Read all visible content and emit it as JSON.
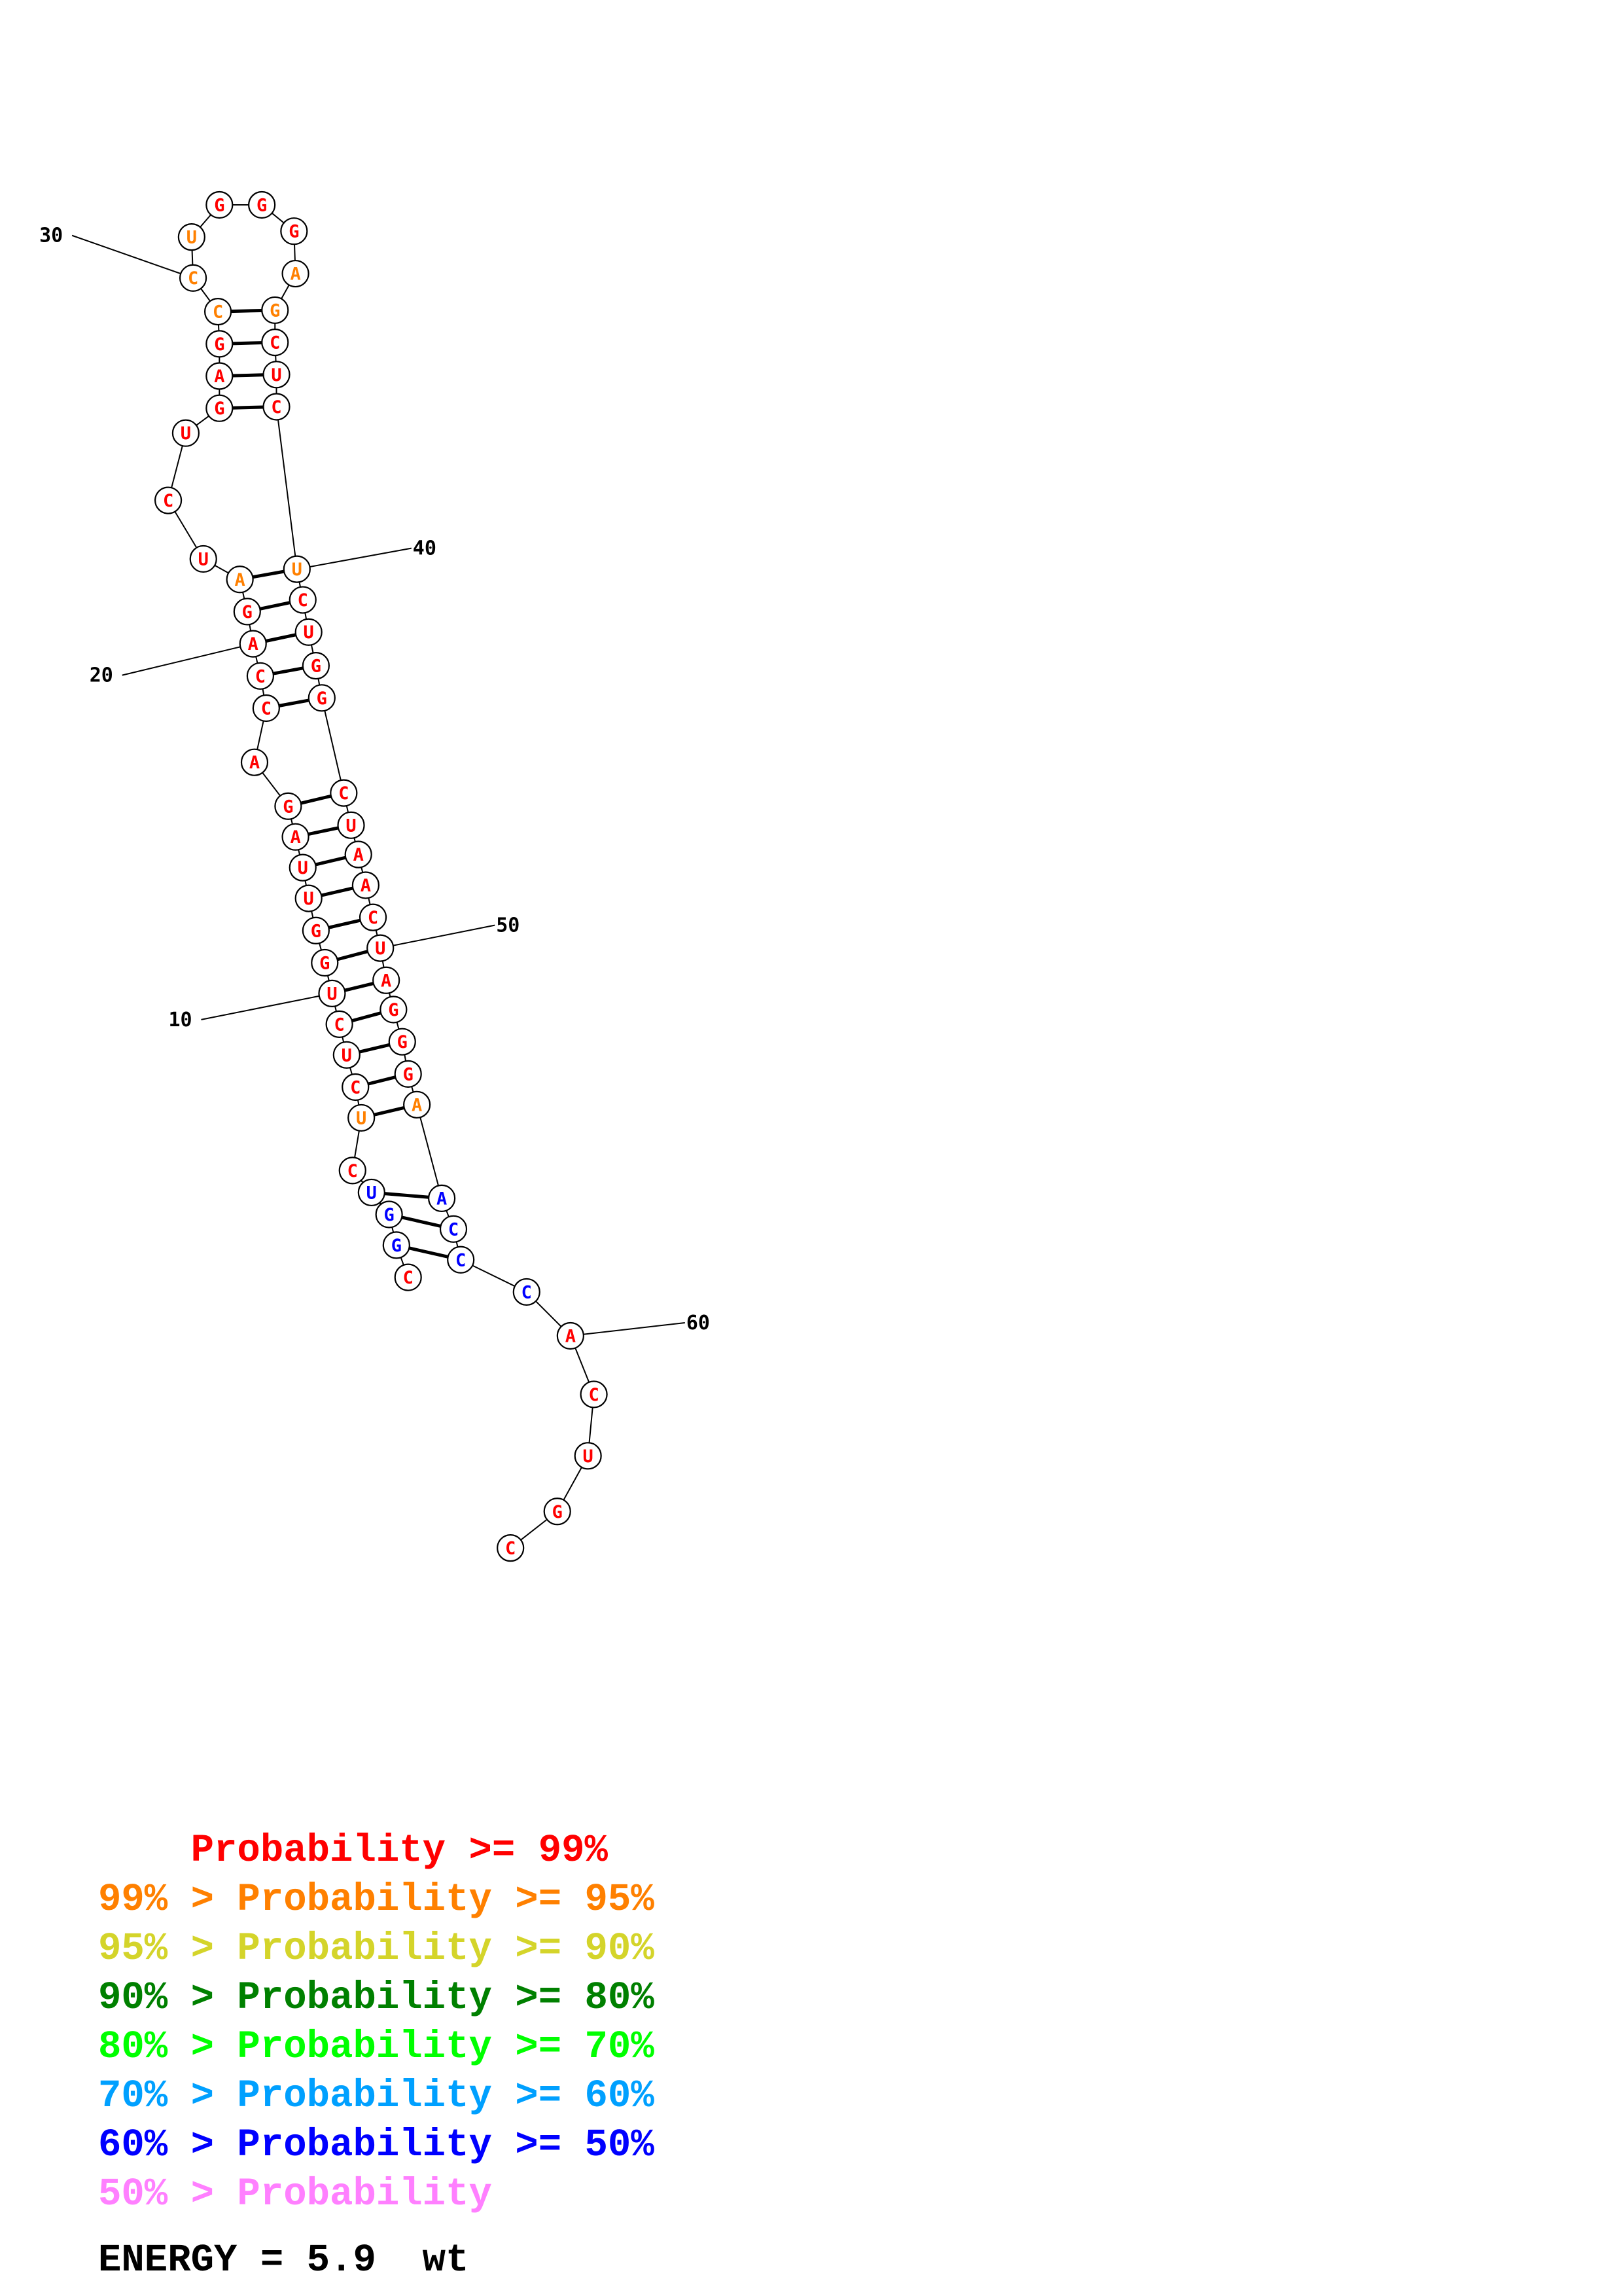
{
  "colors": {
    "p99": "#ff0000",
    "p95": "#ff8000",
    "p90": "#d4d42a",
    "p80": "#008000",
    "p70": "#00ff00",
    "p60": "#00a0ff",
    "p50": "#0000ff",
    "plow": "#ff80ff"
  },
  "sequence": [
    {
      "n": 1,
      "base": "C",
      "color": "p99"
    },
    {
      "n": 2,
      "base": "G",
      "color": "p50"
    },
    {
      "n": 3,
      "base": "G",
      "color": "p50"
    },
    {
      "n": 4,
      "base": "U",
      "color": "p50"
    },
    {
      "n": 5,
      "base": "C",
      "color": "p99"
    },
    {
      "n": 6,
      "base": "U",
      "color": "p95"
    },
    {
      "n": 7,
      "base": "C",
      "color": "p99"
    },
    {
      "n": 8,
      "base": "U",
      "color": "p99"
    },
    {
      "n": 9,
      "base": "C",
      "color": "p99"
    },
    {
      "n": 10,
      "base": "U",
      "color": "p99"
    },
    {
      "n": 11,
      "base": "G",
      "color": "p99"
    },
    {
      "n": 12,
      "base": "G",
      "color": "p99"
    },
    {
      "n": 13,
      "base": "U",
      "color": "p99"
    },
    {
      "n": 14,
      "base": "U",
      "color": "p99"
    },
    {
      "n": 15,
      "base": "A",
      "color": "p99"
    },
    {
      "n": 16,
      "base": "G",
      "color": "p99"
    },
    {
      "n": 17,
      "base": "A",
      "color": "p99"
    },
    {
      "n": 18,
      "base": "C",
      "color": "p99"
    },
    {
      "n": 19,
      "base": "C",
      "color": "p99"
    },
    {
      "n": 20,
      "base": "A",
      "color": "p99"
    },
    {
      "n": 21,
      "base": "G",
      "color": "p99"
    },
    {
      "n": 22,
      "base": "A",
      "color": "p95"
    },
    {
      "n": 23,
      "base": "U",
      "color": "p99"
    },
    {
      "n": 24,
      "base": "C",
      "color": "p99"
    },
    {
      "n": 25,
      "base": "U",
      "color": "p99"
    },
    {
      "n": 26,
      "base": "G",
      "color": "p99"
    },
    {
      "n": 27,
      "base": "A",
      "color": "p99"
    },
    {
      "n": 28,
      "base": "G",
      "color": "p99"
    },
    {
      "n": 29,
      "base": "C",
      "color": "p95"
    },
    {
      "n": 30,
      "base": "C",
      "color": "p95"
    },
    {
      "n": 31,
      "base": "U",
      "color": "p95"
    },
    {
      "n": 32,
      "base": "G",
      "color": "p99"
    },
    {
      "n": 33,
      "base": "G",
      "color": "p99"
    },
    {
      "n": 34,
      "base": "G",
      "color": "p99"
    },
    {
      "n": 35,
      "base": "A",
      "color": "p95"
    },
    {
      "n": 36,
      "base": "G",
      "color": "p95"
    },
    {
      "n": 37,
      "base": "C",
      "color": "p99"
    },
    {
      "n": 38,
      "base": "U",
      "color": "p99"
    },
    {
      "n": 39,
      "base": "C",
      "color": "p99"
    },
    {
      "n": 40,
      "base": "U",
      "color": "p95"
    },
    {
      "n": 41,
      "base": "C",
      "color": "p99"
    },
    {
      "n": 42,
      "base": "U",
      "color": "p99"
    },
    {
      "n": 43,
      "base": "G",
      "color": "p99"
    },
    {
      "n": 44,
      "base": "G",
      "color": "p99"
    },
    {
      "n": 45,
      "base": "C",
      "color": "p99"
    },
    {
      "n": 46,
      "base": "U",
      "color": "p99"
    },
    {
      "n": 47,
      "base": "A",
      "color": "p99"
    },
    {
      "n": 48,
      "base": "A",
      "color": "p99"
    },
    {
      "n": 49,
      "base": "C",
      "color": "p99"
    },
    {
      "n": 50,
      "base": "U",
      "color": "p99"
    },
    {
      "n": 51,
      "base": "A",
      "color": "p99"
    },
    {
      "n": 52,
      "base": "G",
      "color": "p99"
    },
    {
      "n": 53,
      "base": "G",
      "color": "p99"
    },
    {
      "n": 54,
      "base": "G",
      "color": "p99"
    },
    {
      "n": 55,
      "base": "A",
      "color": "p95"
    },
    {
      "n": 56,
      "base": "A",
      "color": "p50"
    },
    {
      "n": 57,
      "base": "C",
      "color": "p50"
    },
    {
      "n": 58,
      "base": "C",
      "color": "p50"
    },
    {
      "n": 59,
      "base": "C",
      "color": "p50"
    },
    {
      "n": 60,
      "base": "A",
      "color": "p99"
    },
    {
      "n": 61,
      "base": "C",
      "color": "p99"
    },
    {
      "n": 62,
      "base": "U",
      "color": "p99"
    },
    {
      "n": 63,
      "base": "G",
      "color": "p99"
    },
    {
      "n": 64,
      "base": "C",
      "color": "p99"
    }
  ],
  "pairs": [
    [
      2,
      58
    ],
    [
      3,
      57
    ],
    [
      4,
      56
    ],
    [
      6,
      55
    ],
    [
      7,
      54
    ],
    [
      8,
      53
    ],
    [
      9,
      52
    ],
    [
      10,
      51
    ],
    [
      11,
      50
    ],
    [
      12,
      49
    ],
    [
      13,
      48
    ],
    [
      14,
      47
    ],
    [
      15,
      46
    ],
    [
      16,
      45
    ],
    [
      18,
      44
    ],
    [
      19,
      43
    ],
    [
      20,
      42
    ],
    [
      21,
      41
    ],
    [
      22,
      40
    ],
    [
      26,
      39
    ],
    [
      27,
      38
    ],
    [
      28,
      37
    ],
    [
      29,
      36
    ]
  ],
  "ticks": [
    {
      "n": 10,
      "label": "10"
    },
    {
      "n": 20,
      "label": "20"
    },
    {
      "n": 30,
      "label": "30"
    },
    {
      "n": 40,
      "label": "40"
    },
    {
      "n": 50,
      "label": "50"
    },
    {
      "n": 60,
      "label": "60"
    }
  ],
  "legend": [
    {
      "prefix": "    ",
      "text": "Probability >= 99%",
      "color": "p99"
    },
    {
      "prefix": "",
      "text": "99% > Probability >= 95%",
      "color": "p95"
    },
    {
      "prefix": "",
      "text": "95% > Probability >= 90%",
      "color": "p90"
    },
    {
      "prefix": "",
      "text": "90% > Probability >= 80%",
      "color": "p80"
    },
    {
      "prefix": "",
      "text": "80% > Probability >= 70%",
      "color": "p70"
    },
    {
      "prefix": "",
      "text": "70% > Probability >= 60%",
      "color": "p60"
    },
    {
      "prefix": "",
      "text": "60% > Probability >= 50%",
      "color": "p50"
    },
    {
      "prefix": "",
      "text": "50% > Probability",
      "color": "plow"
    }
  ],
  "energy": "ENERGY = 5.9  wt"
}
